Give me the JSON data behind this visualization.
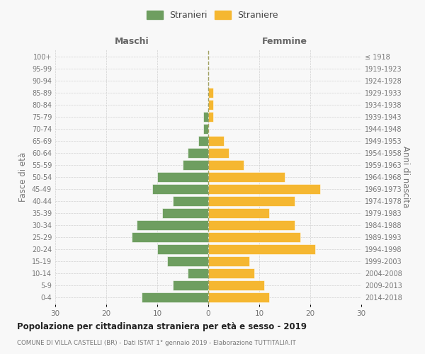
{
  "age_groups": [
    "0-4",
    "5-9",
    "10-14",
    "15-19",
    "20-24",
    "25-29",
    "30-34",
    "35-39",
    "40-44",
    "45-49",
    "50-54",
    "55-59",
    "60-64",
    "65-69",
    "70-74",
    "75-79",
    "80-84",
    "85-89",
    "90-94",
    "95-99",
    "100+"
  ],
  "birth_years": [
    "2014-2018",
    "2009-2013",
    "2004-2008",
    "1999-2003",
    "1994-1998",
    "1989-1993",
    "1984-1988",
    "1979-1983",
    "1974-1978",
    "1969-1973",
    "1964-1968",
    "1959-1963",
    "1954-1958",
    "1949-1953",
    "1944-1948",
    "1939-1943",
    "1934-1938",
    "1929-1933",
    "1924-1928",
    "1919-1923",
    "≤ 1918"
  ],
  "males": [
    13,
    7,
    4,
    8,
    10,
    15,
    14,
    9,
    7,
    11,
    10,
    5,
    4,
    2,
    1,
    1,
    0,
    0,
    0,
    0,
    0
  ],
  "females": [
    12,
    11,
    9,
    8,
    21,
    18,
    17,
    12,
    17,
    22,
    15,
    7,
    4,
    3,
    0,
    1,
    1,
    1,
    0,
    0,
    0
  ],
  "male_color": "#6e9e60",
  "female_color": "#f5b731",
  "background_color": "#f8f8f8",
  "grid_color": "#d0d0d0",
  "bar_edge_color": "#ffffff",
  "title": "Popolazione per cittadinanza straniera per età e sesso - 2019",
  "subtitle": "COMUNE DI VILLA CASTELLI (BR) - Dati ISTAT 1° gennaio 2019 - Elaborazione TUTTITALIA.IT",
  "left_header": "Maschi",
  "right_header": "Femmine",
  "left_ylabel": "Fasce di età",
  "right_ylabel": "Anni di nascita",
  "legend_male": "Stranieri",
  "legend_female": "Straniere",
  "xlim": 30
}
